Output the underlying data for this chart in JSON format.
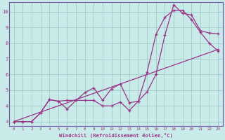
{
  "xlabel": "Windchill (Refroidissement éolien,°C)",
  "xlim": [
    -0.5,
    23.5
  ],
  "ylim": [
    2.7,
    10.6
  ],
  "xticks": [
    0,
    1,
    2,
    3,
    4,
    5,
    6,
    7,
    8,
    9,
    10,
    11,
    12,
    13,
    14,
    15,
    16,
    17,
    18,
    19,
    20,
    21,
    22,
    23
  ],
  "yticks": [
    3,
    4,
    5,
    6,
    7,
    8,
    9,
    10
  ],
  "bg_color": "#c8eae8",
  "grid_color": "#a0ccc8",
  "line_color": "#993388",
  "line1_x": [
    0,
    1,
    2,
    3,
    4,
    5,
    6,
    7,
    8,
    9,
    10,
    11,
    12,
    13,
    14,
    15,
    16,
    17,
    18,
    19,
    20,
    21,
    22,
    23
  ],
  "line1_y": [
    3.0,
    3.0,
    3.0,
    3.55,
    4.4,
    4.3,
    4.35,
    4.35,
    4.85,
    5.15,
    4.35,
    5.1,
    5.4,
    4.2,
    4.3,
    6.15,
    8.55,
    9.65,
    10.1,
    10.1,
    9.5,
    8.7,
    8.0,
    7.5
  ],
  "line2_x": [
    0,
    1,
    2,
    3,
    4,
    5,
    6,
    7,
    8,
    9,
    10,
    11,
    12,
    13,
    14,
    15,
    16,
    17,
    18,
    19,
    20,
    21,
    22,
    23
  ],
  "line2_y": [
    3.0,
    3.0,
    3.0,
    3.55,
    4.4,
    4.3,
    3.8,
    4.35,
    4.35,
    4.35,
    4.0,
    4.0,
    4.25,
    3.7,
    4.3,
    4.9,
    6.0,
    8.5,
    10.45,
    9.9,
    9.8,
    8.8,
    8.65,
    8.6
  ],
  "line3_x": [
    0,
    23
  ],
  "line3_y": [
    3.0,
    7.6
  ]
}
